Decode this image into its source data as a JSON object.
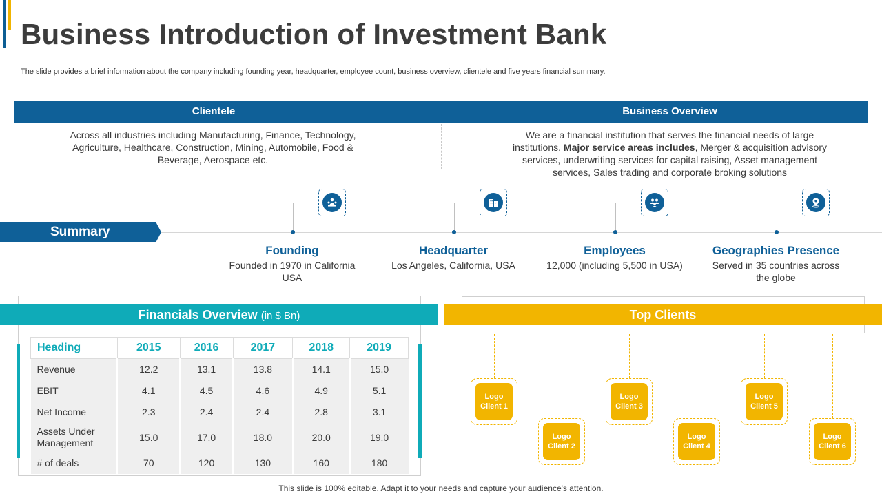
{
  "title": "Business Introduction of Investment Bank",
  "subtitle": "The slide provides a brief information about the company including founding year, headquarter, employee count, business overview, clientele and five years financial summary.",
  "clientele": {
    "heading": "Clientele",
    "text": "Across all industries including Manufacturing, Finance, Technology, Agriculture, Healthcare, Construction, Mining, Automobile, Food & Beverage, Aerospace etc."
  },
  "business_overview": {
    "heading": "Business Overview",
    "text_before": "We are a financial institution that serves the financial needs of large institutions. ",
    "text_bold": "Major service areas includes",
    "text_after": ", Merger & acquisition advisory services, underwriting services for capital raising, Asset management services, Sales trading and corporate broking solutions"
  },
  "summary": {
    "label": "Summary",
    "items": [
      {
        "title": "Founding",
        "text": "Founded in 1970 in California USA",
        "icon": "people-group-icon"
      },
      {
        "title": "Headquarter",
        "text": "Los Angeles, California, USA",
        "icon": "office-building-icon"
      },
      {
        "title": "Employees",
        "text": "12,000 (including 5,500 in USA)",
        "icon": "team-icon"
      },
      {
        "title": "Geographies Presence",
        "text": "Served in 35 countries across the globe",
        "icon": "location-pin-icon"
      }
    ]
  },
  "financials": {
    "heading": "Financials Overview",
    "unit": "(in $ Bn)",
    "columns": [
      "Heading",
      "2015",
      "2016",
      "2017",
      "2018",
      "2019"
    ],
    "rows": [
      {
        "label": "Revenue",
        "values": [
          "12.2",
          "13.1",
          "13.8",
          "14.1",
          "15.0"
        ]
      },
      {
        "label": "EBIT",
        "values": [
          "4.1",
          "4.5",
          "4.6",
          "4.9",
          "5.1"
        ]
      },
      {
        "label": "Net Income",
        "values": [
          "2.3",
          "2.4",
          "2.4",
          "2.8",
          "3.1"
        ]
      },
      {
        "label": "Assets Under Management",
        "values": [
          "15.0",
          "17.0",
          "18.0",
          "20.0",
          "19.0"
        ]
      },
      {
        "label": "# of deals",
        "values": [
          "70",
          "120",
          "130",
          "160",
          "180"
        ]
      }
    ]
  },
  "top_clients": {
    "heading": "Top Clients",
    "logos": [
      "Logo Client 1",
      "Logo Client 2",
      "Logo Client 3",
      "Logo Client 4",
      "Logo Client 5",
      "Logo Client 6"
    ]
  },
  "footer": "This slide is 100% editable. Adapt it to your needs and capture your audience's attention.",
  "colors": {
    "primary_blue": "#0f6098",
    "teal": "#0fabb8",
    "yellow": "#f2b500"
  }
}
